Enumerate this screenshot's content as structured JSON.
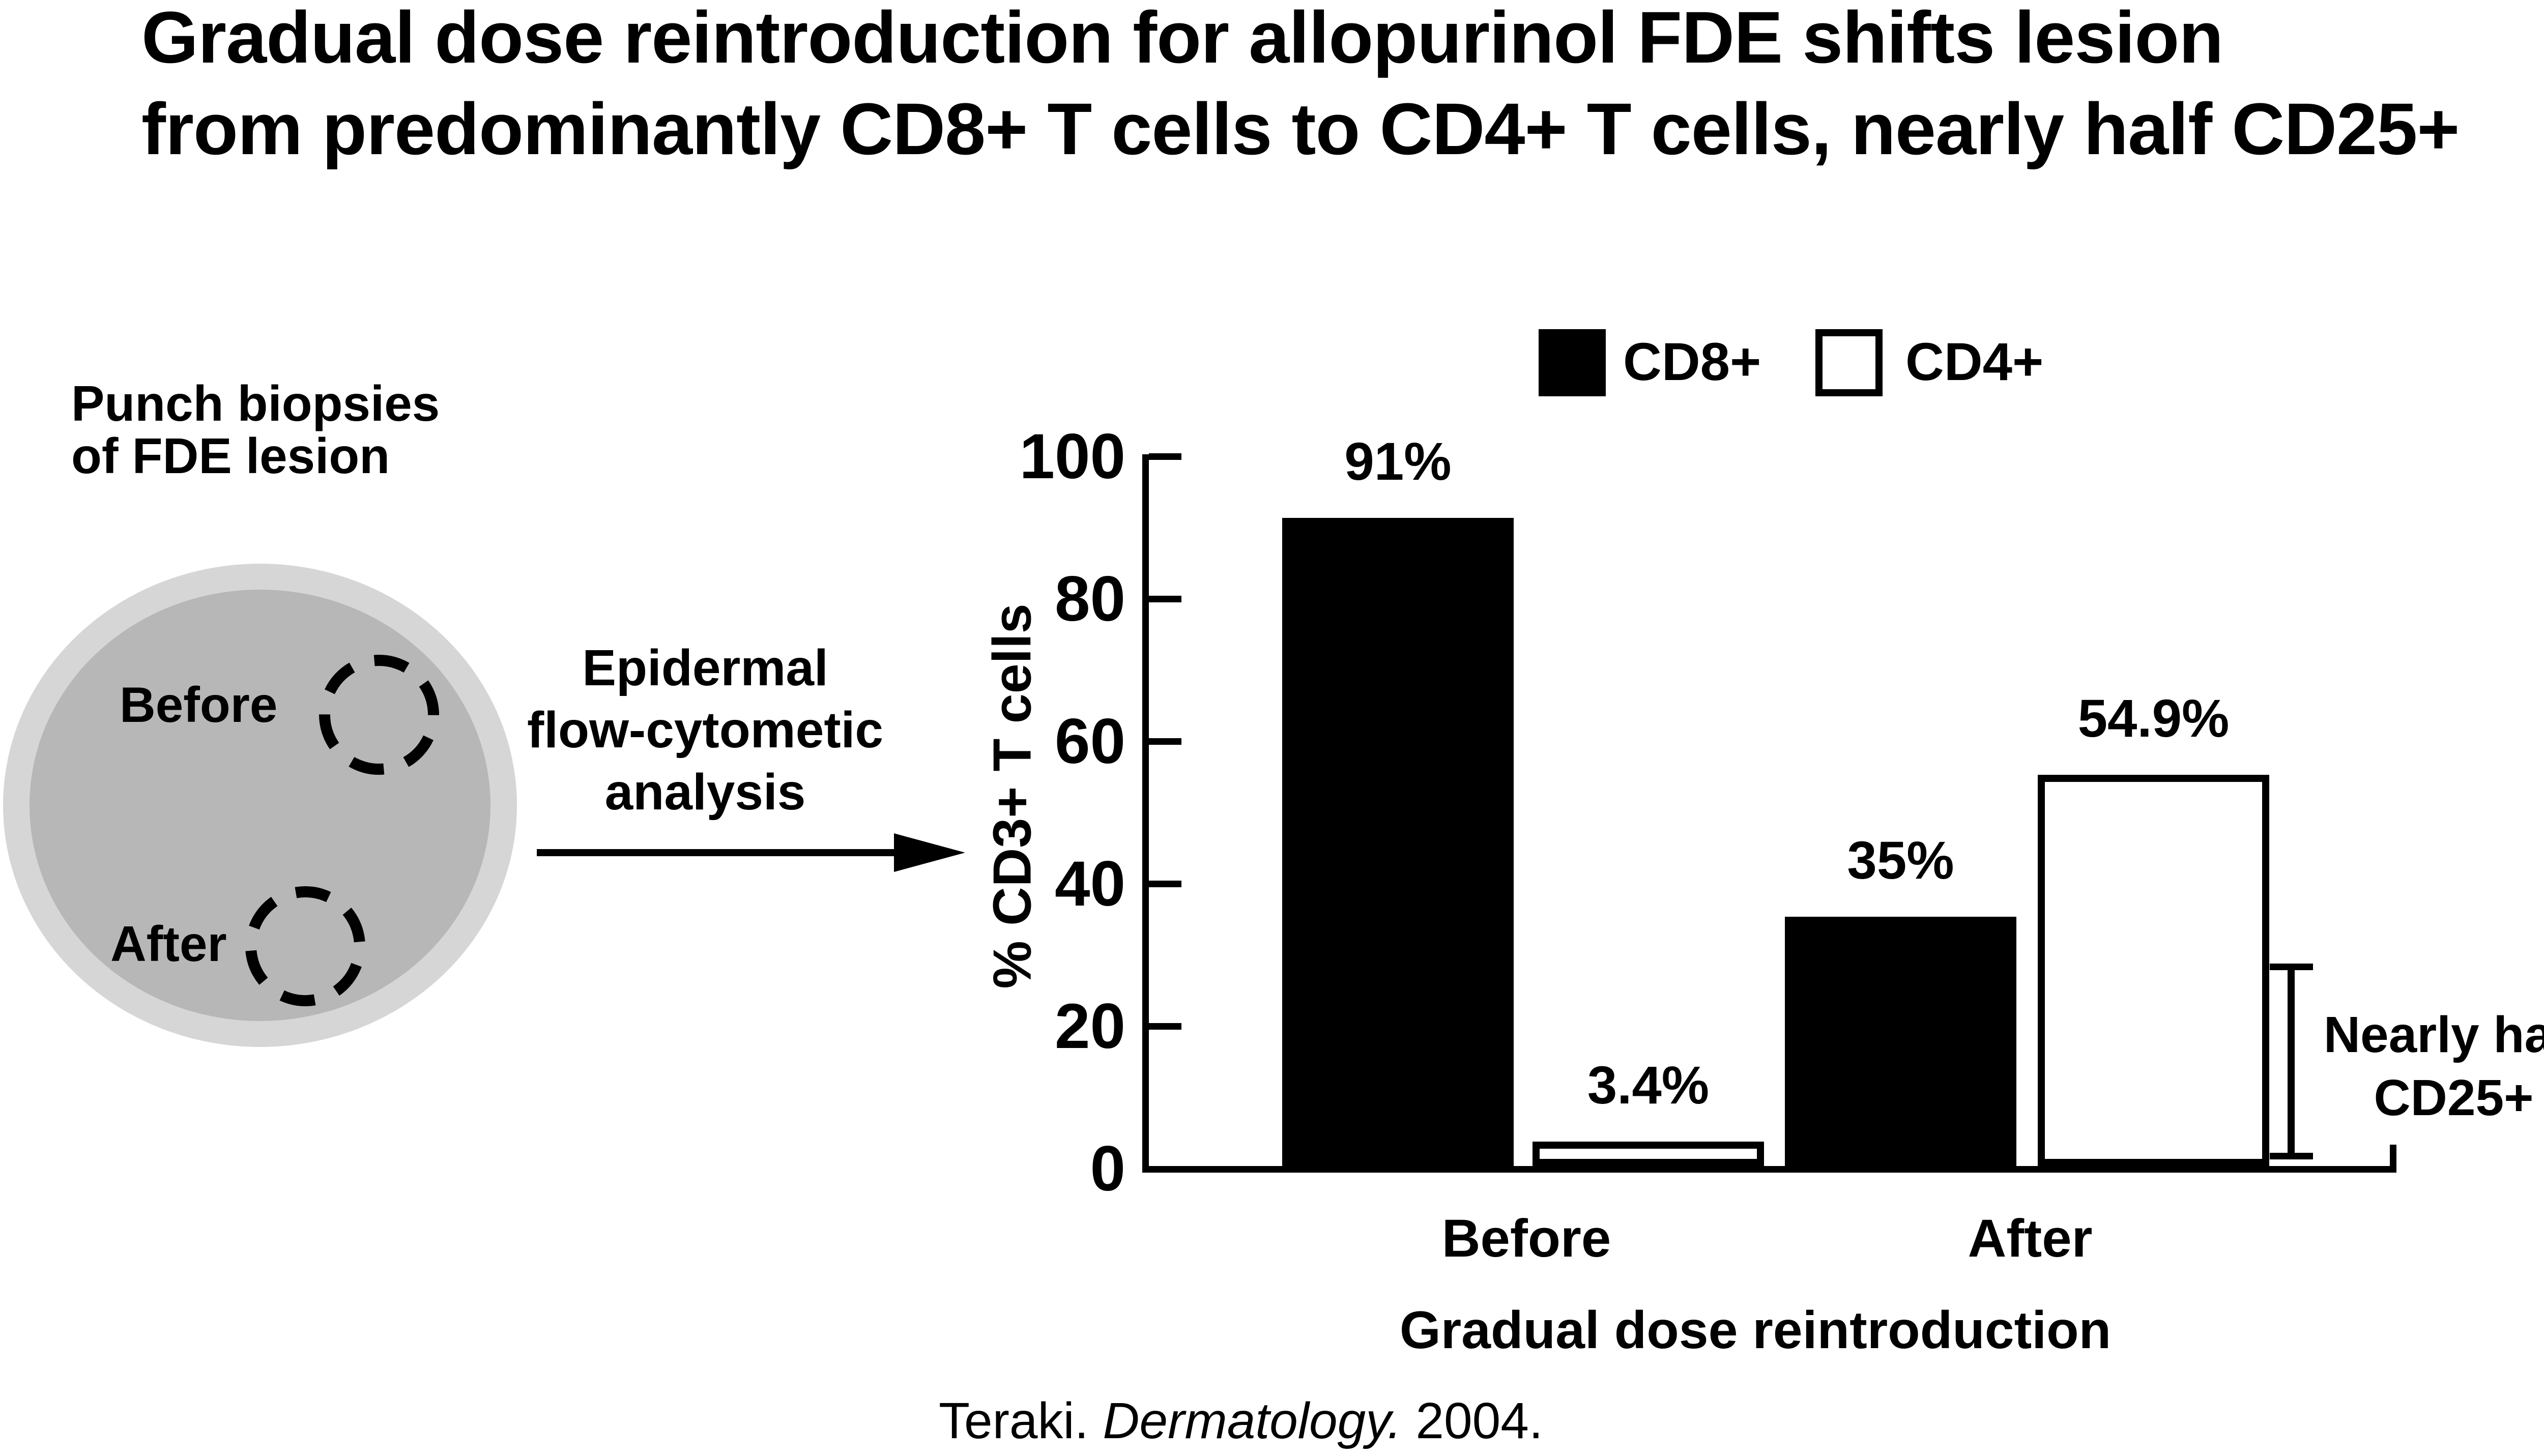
{
  "slide": {
    "title_lines": [
      "Gradual dose reintroduction for allopurinol FDE shifts lesion",
      "from predominantly CD8+ T cells to CD4+ T cells, nearly half CD25+"
    ],
    "citation": {
      "prefix": "Teraki. ",
      "journal": "Dermatology.",
      "suffix": " 2004."
    }
  },
  "diagram": {
    "punch_label_lines": [
      "Punch biopsies",
      "of FDE lesion"
    ],
    "biopsy_before_label": "Before",
    "biopsy_after_label": "After",
    "process_lines": [
      "Epidermal",
      "flow-cytometic",
      "analysis"
    ]
  },
  "chart_data": {
    "type": "bar",
    "categories": [
      "Before",
      "After"
    ],
    "series": [
      {
        "name": "CD8+",
        "values": [
          91,
          35
        ],
        "fill": "#000000"
      },
      {
        "name": "CD4+",
        "values": [
          3.4,
          54.9
        ],
        "fill": "#ffffff"
      }
    ],
    "value_label_suffix": "%",
    "title": "",
    "xlabel": "Gradual dose reintroduction",
    "ylabel": "% CD3+ T cells",
    "ylim": [
      0,
      100
    ],
    "yticks": [
      100,
      80,
      60,
      40,
      20,
      0
    ],
    "grid": false,
    "legend_position": "top",
    "annotation": {
      "lines": [
        "Nearly half",
        "CD25+"
      ],
      "applies_to": "CD4+ After bar",
      "range_pct": [
        2,
        28
      ]
    },
    "colors": {
      "bar_fill": "#000000",
      "bar_outline": "#000000",
      "dish_outer": "#d6d6d6",
      "dish_inner": "#b7b7b7"
    }
  }
}
